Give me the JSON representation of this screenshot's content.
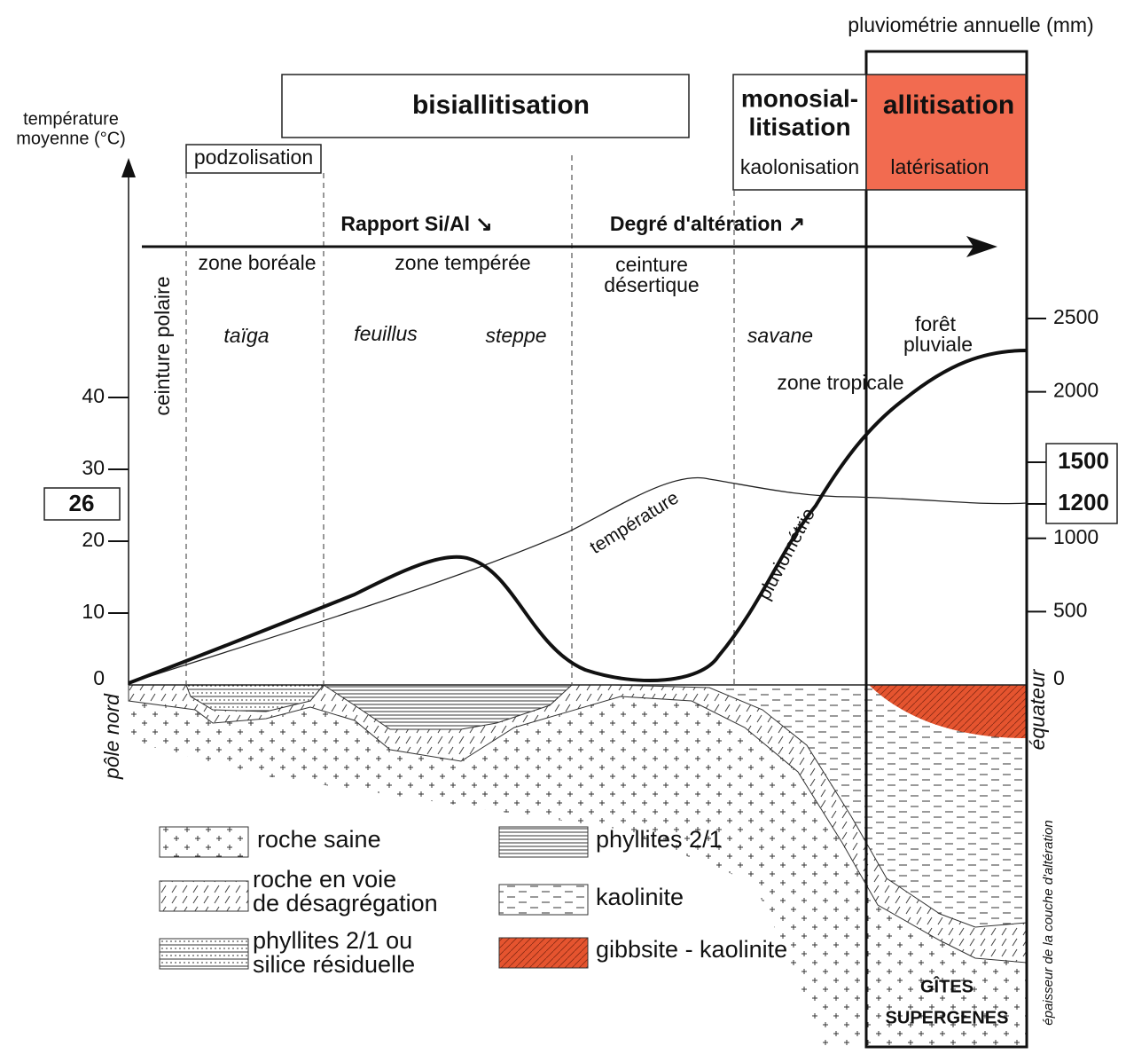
{
  "header": {
    "title": "pluviométrie annuelle (mm)"
  },
  "left_axis": {
    "label": [
      "température",
      "moyenne (°C)"
    ],
    "ticks": [
      0,
      10,
      20,
      30,
      40
    ],
    "highlight": 26
  },
  "right_axis": {
    "ticks": [
      0,
      500,
      1000,
      2000,
      2500
    ],
    "highlights": [
      1500,
      1200
    ]
  },
  "processes": {
    "bisiallitisation": "bisiallitisation",
    "monosiallitisation": [
      "monosial-",
      "litisation"
    ],
    "kaolonisation": "kaolonisation",
    "allitisation": "allitisation",
    "laterisation": "latérisation",
    "podzolisation": "podzolisation"
  },
  "trend": {
    "ratio": "Rapport Si/Al ↘",
    "degree": "Degré d'altération ↗"
  },
  "zones": {
    "polar": "ceinture polaire",
    "boreal": "zone boréale",
    "temperate": "zone tempérée",
    "desert": [
      "ceinture",
      "désertique"
    ],
    "tropical": "zone tropicale",
    "rainforest": [
      "forêt",
      "pluviale"
    ]
  },
  "vegetation": {
    "taiga": "taïga",
    "feuillus": "feuillus",
    "steppe": "steppe",
    "savane": "savane"
  },
  "curves": {
    "temperature": "température",
    "rainfall": "pluviométrie"
  },
  "side_labels": {
    "north_pole": "pôle nord",
    "equator": "équateur",
    "thickness": "épaisseur de la couche d'altération"
  },
  "deposits": [
    "GÎTES",
    "SUPERGENES"
  ],
  "legend": {
    "fresh_rock": "roche saine",
    "weathering_rock": [
      "roche en voie",
      "de désagrégation"
    ],
    "phyllites_silica": [
      "phyllites 2/1 ou",
      "silice résiduelle"
    ],
    "phyllites": "phyllites 2/1",
    "kaolinite": "kaolinite",
    "gibbsite": "gibbsite - kaolinite"
  }
}
